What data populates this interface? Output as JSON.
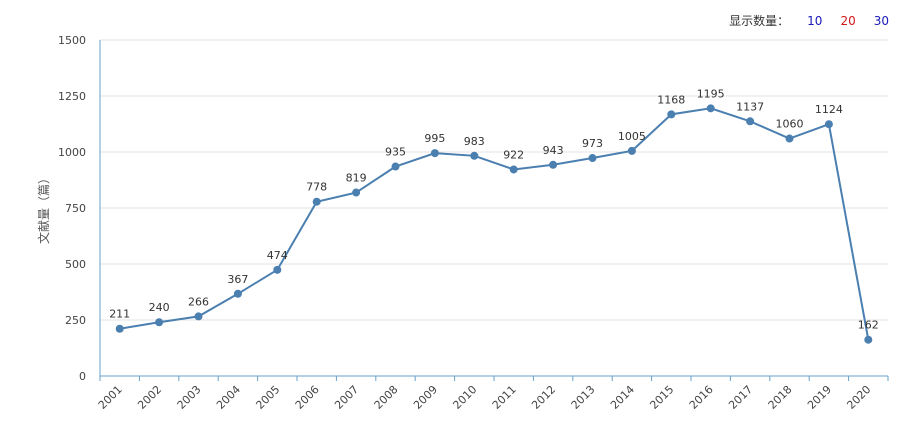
{
  "controls": {
    "label": "显示数量：",
    "options": [
      {
        "text": "10",
        "color": "#1a1ab8"
      },
      {
        "text": "20",
        "color": "#d01818"
      },
      {
        "text": "30",
        "color": "#1a1ab8"
      }
    ]
  },
  "chart_data": {
    "type": "line",
    "ylabel": "文献量（篇）",
    "xlabel": "",
    "ylim": [
      0,
      1500
    ],
    "yticks": [
      0,
      250,
      500,
      750,
      1000,
      1250,
      1500
    ],
    "grid": true,
    "categories": [
      "2001",
      "2002",
      "2003",
      "2004",
      "2005",
      "2006",
      "2007",
      "2008",
      "2009",
      "2010",
      "2011",
      "2012",
      "2013",
      "2014",
      "2015",
      "2016",
      "2017",
      "2018",
      "2019",
      "2020"
    ],
    "series": [
      {
        "values": [
          211,
          240,
          266,
          367,
          474,
          778,
          819,
          935,
          995,
          983,
          922,
          943,
          973,
          1005,
          1168,
          1195,
          1137,
          1060,
          1124,
          162
        ]
      }
    ],
    "line_color": "#4a7fb0"
  }
}
